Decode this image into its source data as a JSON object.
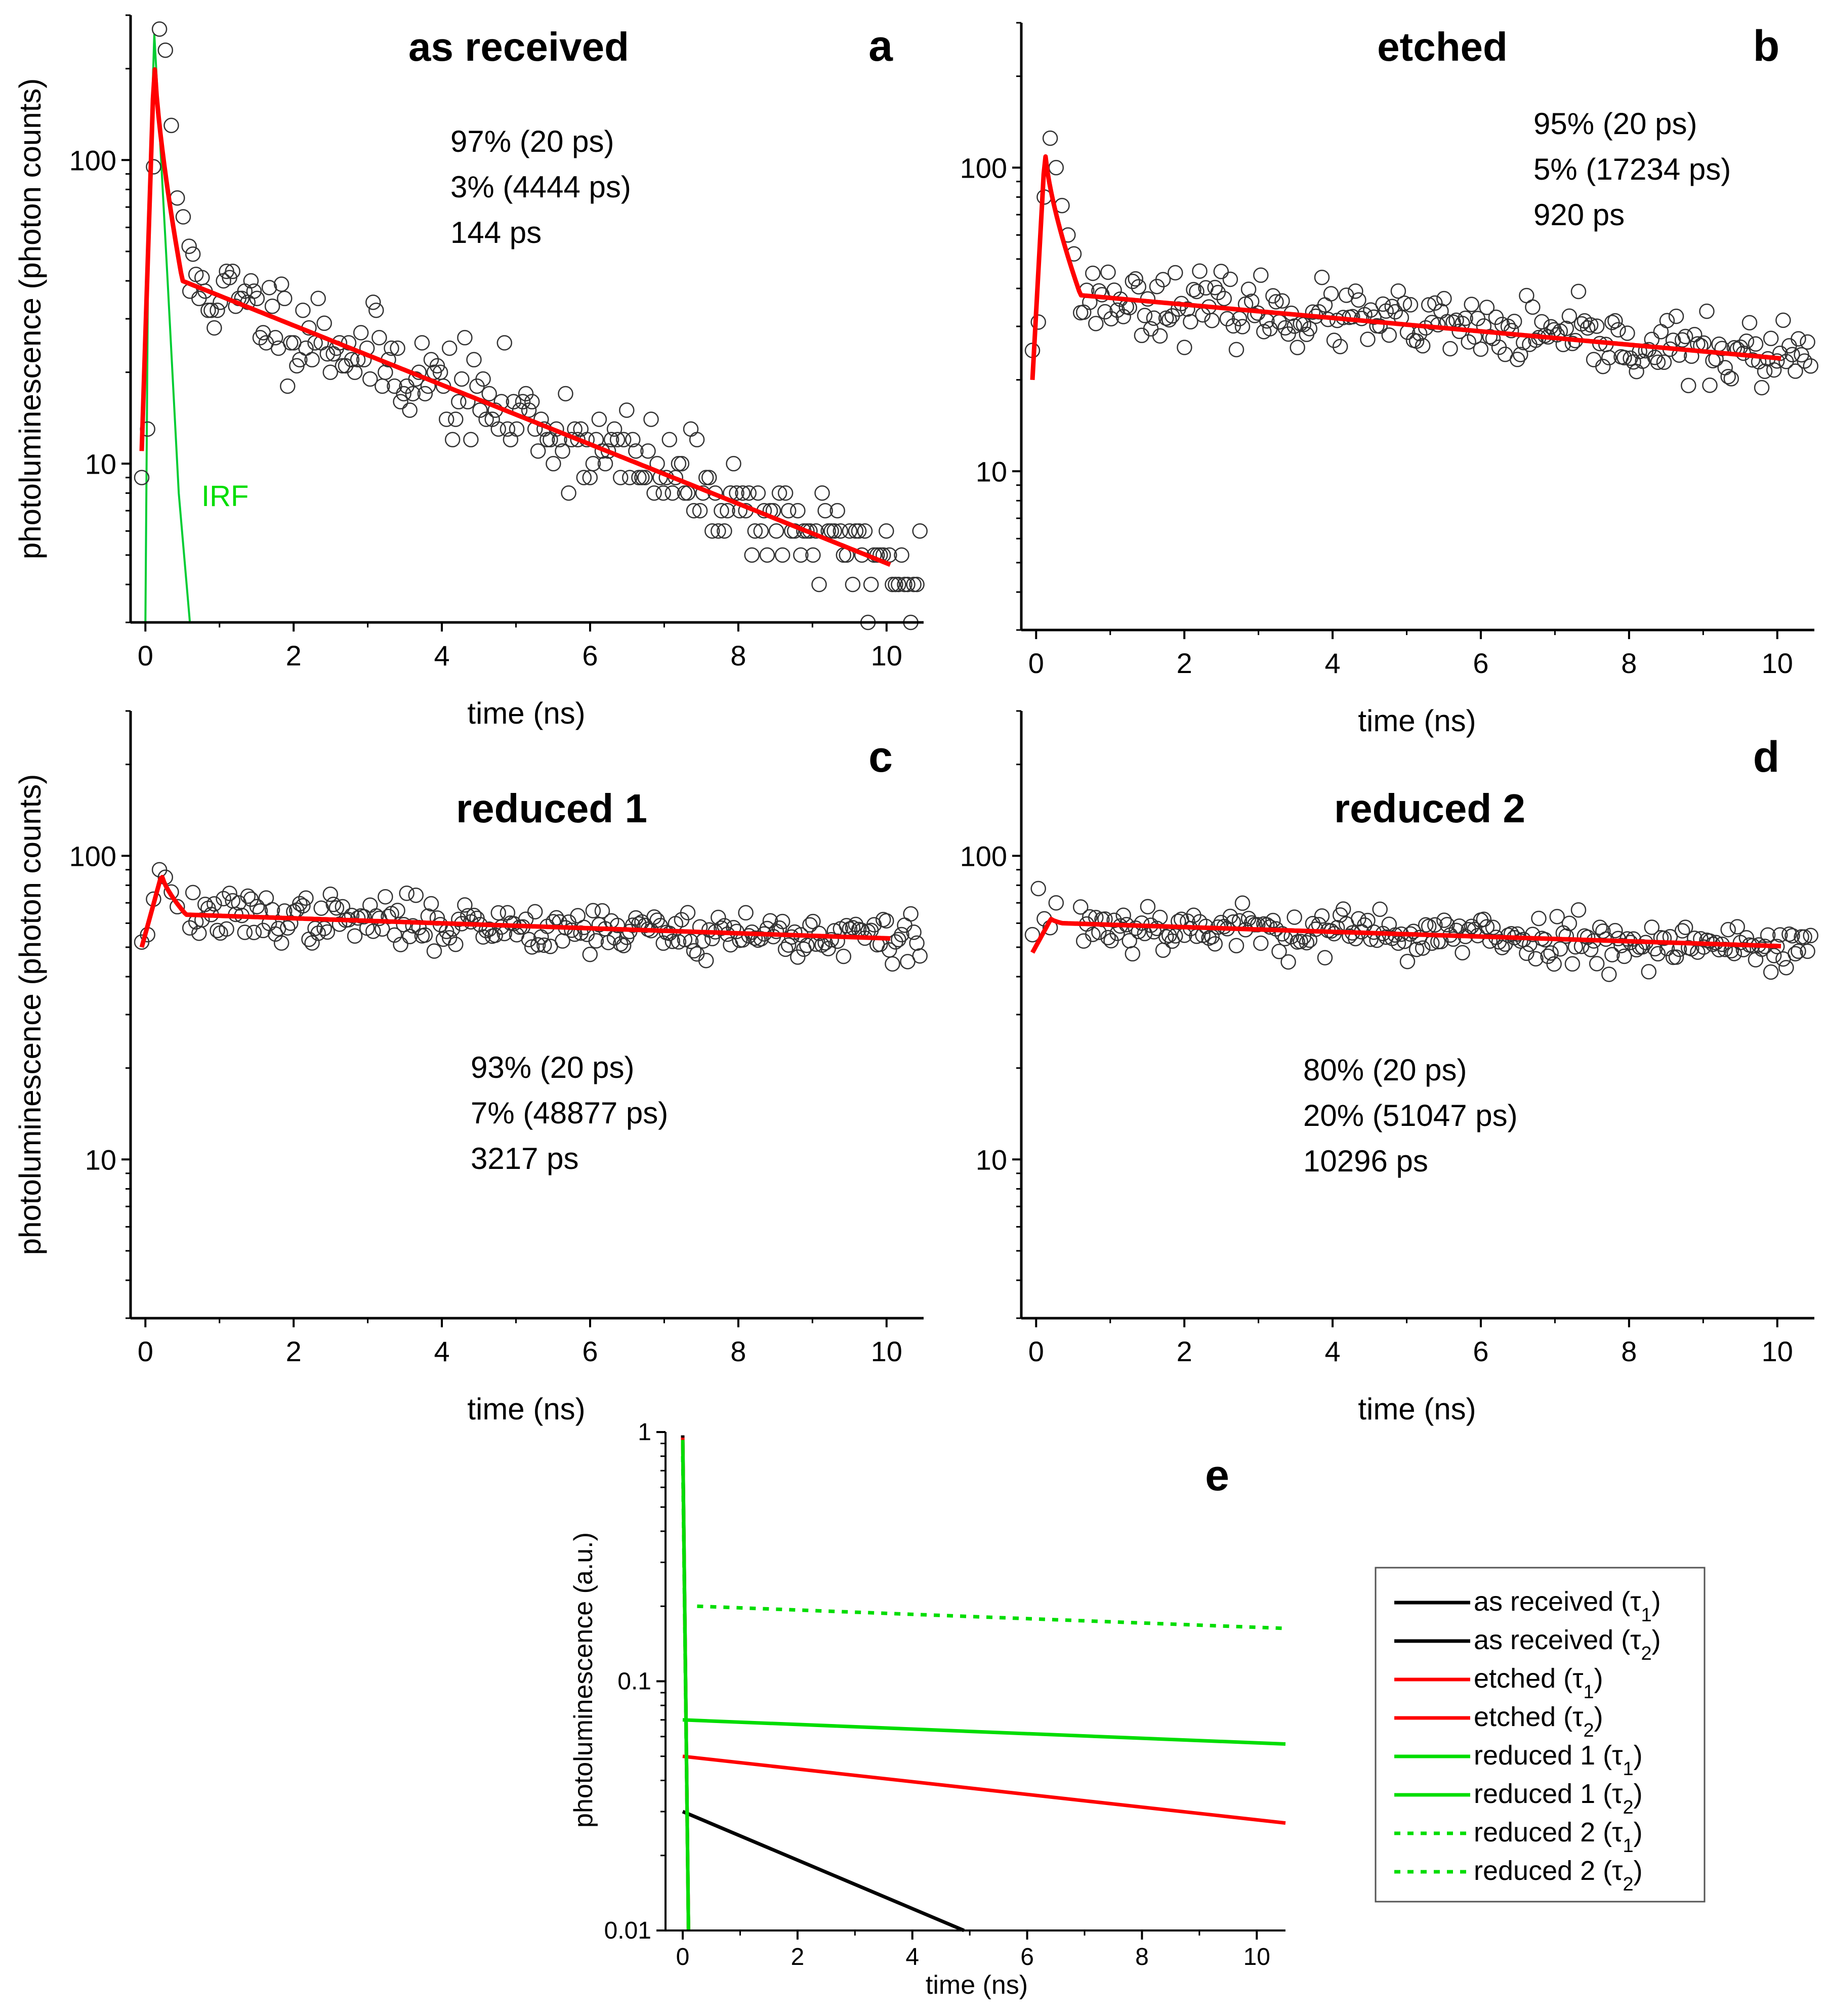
{
  "figure": {
    "panels": [
      {
        "letter": "a",
        "title": "as received",
        "xlabel": "time (ns)",
        "ylabel": "photoluminescence (photon counts)",
        "annotations": [
          "97% (20 ps)",
          "3% (4444 ps)",
          "144 ps"
        ],
        "irf_label": "IRF"
      },
      {
        "letter": "b",
        "title": "etched",
        "xlabel": "time (ns)",
        "ylabel": "",
        "annotations": [
          "95% (20 ps)",
          "5% (17234 ps)",
          "920 ps"
        ]
      },
      {
        "letter": "c",
        "title": "reduced 1",
        "xlabel": "time (ns)",
        "ylabel": "photoluminescence (photon counts)",
        "annotations": [
          "93% (20 ps)",
          "7% (48877 ps)",
          "3217 ps"
        ]
      },
      {
        "letter": "d",
        "title": "reduced 2",
        "xlabel": "time (ns)",
        "ylabel": "",
        "annotations": [
          "80% (20 ps)",
          "20% (51047 ps)",
          "10296 ps"
        ]
      }
    ],
    "panel_e": {
      "letter": "e",
      "xlabel": "time (ns)",
      "ylabel": "photoluminescence (a.u.)",
      "legend": [
        {
          "text": "as received (",
          "sub": "1",
          "color": "#000000",
          "dash": false
        },
        {
          "text": "as received (",
          "sub": "2",
          "color": "#000000",
          "dash": false
        },
        {
          "text": "etched (",
          "sub": "1",
          "color": "#ff0000",
          "dash": false
        },
        {
          "text": "etched (",
          "sub": "2",
          "color": "#ff0000",
          "dash": false
        },
        {
          "text": "reduced 1 (",
          "sub": "1",
          "color": "#00dd00",
          "dash": false
        },
        {
          "text": "reduced 1 (",
          "sub": "2",
          "color": "#00dd00",
          "dash": false
        },
        {
          "text": "reduced 2 (",
          "sub": "1",
          "color": "#00dd00",
          "dash": true
        },
        {
          "text": "reduced 2 (",
          "sub": "2",
          "color": "#00dd00",
          "dash": true
        }
      ]
    }
  },
  "colors": {
    "fit": "#ff0000",
    "irf": "#00cc33",
    "data_marker": "#333333",
    "black": "#000000",
    "red": "#ff0000",
    "green": "#00dd00"
  },
  "chart_data": [
    {
      "type": "scatter",
      "panel": "a",
      "title": "as received",
      "xlabel": "time (ns)",
      "ylabel": "photoluminescence (photon counts)",
      "yscale": "log",
      "xlim": [
        -0.2,
        10.5
      ],
      "ylim": [
        3,
        300
      ],
      "xticks": [
        0,
        2,
        4,
        6,
        8,
        10
      ],
      "yticks": [
        10,
        100
      ],
      "fit": {
        "peak_time": 0.12,
        "amplitudes": [
          0.97,
          0.03
        ],
        "lifetimes_ps": [
          20,
          4444
        ],
        "avg_lifetime_ps": 144,
        "start_value": 11,
        "peak_value": 220,
        "knee_time": 0.5,
        "knee_value": 40,
        "end_value": 4.2
      },
      "irf": {
        "t0": 0.0,
        "peak_time": 0.12,
        "peak_value": 260,
        "end_time": 0.6,
        "end_value": 3
      },
      "scatter": {
        "seed": 11,
        "n": 240,
        "noise": 0.18,
        "spike_values": [
          9,
          13,
          95,
          270,
          230,
          130,
          75,
          65,
          52
        ]
      }
    },
    {
      "type": "scatter",
      "panel": "b",
      "title": "etched",
      "xlabel": "time (ns)",
      "ylabel": "",
      "yscale": "log",
      "xlim": [
        -0.2,
        10.5
      ],
      "ylim": [
        3,
        300
      ],
      "xticks": [
        0,
        2,
        4,
        6,
        8,
        10
      ],
      "yticks": [
        10,
        100
      ],
      "fit": {
        "peak_time": 0.12,
        "amplitudes": [
          0.95,
          0.05
        ],
        "lifetimes_ps": [
          20,
          17234
        ],
        "avg_lifetime_ps": 920,
        "start_value": 20,
        "peak_value": 115,
        "knee_time": 0.6,
        "knee_value": 38,
        "end_value": 23
      },
      "scatter": {
        "seed": 23,
        "n": 240,
        "noise": 0.12,
        "spike_values": [
          25,
          31,
          80,
          125,
          100,
          75,
          60,
          52
        ]
      }
    },
    {
      "type": "scatter",
      "panel": "c",
      "title": "reduced 1",
      "xlabel": "time (ns)",
      "ylabel": "photoluminescence (photon counts)",
      "yscale": "log",
      "xlim": [
        -0.2,
        10.5
      ],
      "ylim": [
        3,
        300
      ],
      "xticks": [
        0,
        2,
        4,
        6,
        8,
        10
      ],
      "yticks": [
        10,
        100
      ],
      "fit": {
        "peak_time": 0.22,
        "amplitudes": [
          0.93,
          0.07
        ],
        "lifetimes_ps": [
          20,
          48877
        ],
        "avg_lifetime_ps": 3217,
        "start_value": 50,
        "peak_value": 87,
        "knee_time": 0.55,
        "knee_value": 64,
        "end_value": 53
      },
      "scatter": {
        "seed": 37,
        "n": 240,
        "noise": 0.09,
        "spike_values": [
          52,
          55,
          72,
          90,
          85,
          76,
          68
        ]
      }
    },
    {
      "type": "scatter",
      "panel": "d",
      "title": "reduced 2",
      "xlabel": "time (ns)",
      "ylabel": "",
      "yscale": "log",
      "xlim": [
        -0.2,
        10.5
      ],
      "ylim": [
        3,
        300
      ],
      "xticks": [
        0,
        2,
        4,
        6,
        8,
        10
      ],
      "yticks": [
        10,
        100
      ],
      "fit": {
        "peak_time": 0.2,
        "amplitudes": [
          0.8,
          0.2
        ],
        "lifetimes_ps": [
          20,
          51047
        ],
        "avg_lifetime_ps": 10296,
        "start_value": 48,
        "peak_value": 62,
        "knee_time": 0.35,
        "knee_value": 60,
        "end_value": 50
      },
      "scatter": {
        "seed": 53,
        "n": 240,
        "noise": 0.09,
        "spike_values": [
          55,
          78,
          62,
          58,
          70
        ]
      }
    },
    {
      "type": "line",
      "panel": "e",
      "xlabel": "time (ns)",
      "ylabel": "photoluminescence (a.u.)",
      "yscale": "log",
      "xlim": [
        -0.3,
        10.5
      ],
      "ylim": [
        0.01,
        1
      ],
      "xticks": [
        0,
        2,
        4,
        6,
        8,
        10
      ],
      "yticks": [
        0.01,
        0.1,
        1
      ],
      "ytick_labels": [
        "0.01",
        "0.1",
        "1"
      ],
      "series": [
        {
          "name": "as received (τ1)",
          "x": [
            0,
            0.1
          ],
          "y": [
            0.97,
            0.01
          ],
          "color": "#000000",
          "dash": false
        },
        {
          "name": "as received (τ2)",
          "x": [
            0,
            4.9
          ],
          "y": [
            0.03,
            0.01
          ],
          "color": "#000000",
          "dash": false
        },
        {
          "name": "etched (τ1)",
          "x": [
            0,
            0.1
          ],
          "y": [
            0.95,
            0.01
          ],
          "color": "#ff0000",
          "dash": false
        },
        {
          "name": "etched (τ2)",
          "x": [
            0,
            10.5
          ],
          "y": [
            0.05,
            0.027
          ],
          "color": "#ff0000",
          "dash": false
        },
        {
          "name": "reduced 1 (τ1)",
          "x": [
            0,
            0.1
          ],
          "y": [
            0.93,
            0.01
          ],
          "color": "#00dd00",
          "dash": false
        },
        {
          "name": "reduced 1 (τ2)",
          "x": [
            0,
            10.5
          ],
          "y": [
            0.07,
            0.056
          ],
          "color": "#00dd00",
          "dash": false
        },
        {
          "name": "reduced 2 (τ1)",
          "x": [
            0,
            0.1
          ],
          "y": [
            0.8,
            0.01
          ],
          "color": "#00dd00",
          "dash": true
        },
        {
          "name": "reduced 2 (τ2)",
          "x": [
            0.25,
            10.5
          ],
          "y": [
            0.2,
            0.163
          ],
          "color": "#00dd00",
          "dash": true
        }
      ]
    }
  ]
}
